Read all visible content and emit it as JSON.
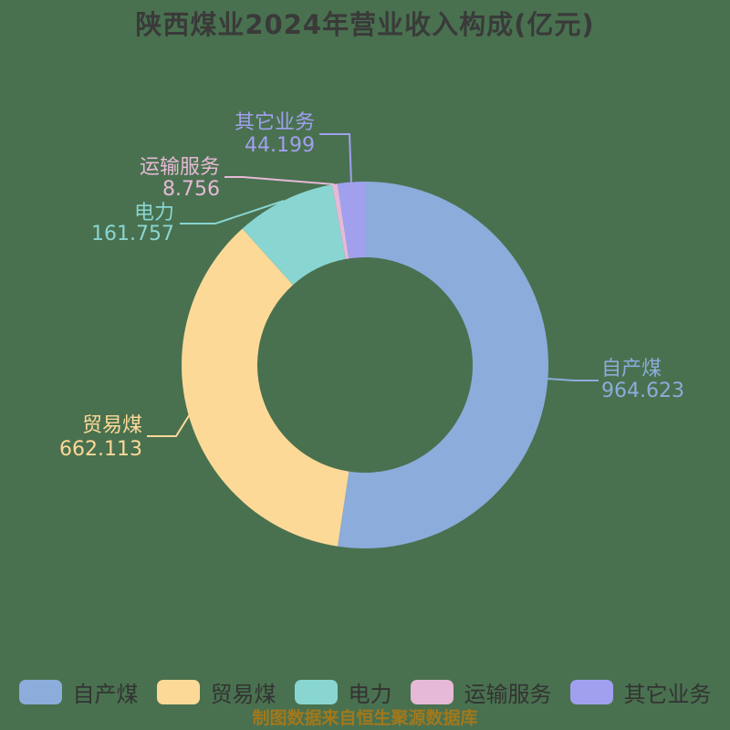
{
  "title": {
    "text": "陕西煤业2024年营业收入构成(亿元)",
    "color": "#3a3a3a"
  },
  "footer": {
    "text": "制图数据来自恒生聚源数据库",
    "color": "#a2781c"
  },
  "background_color": "#49714f",
  "chart_data": {
    "type": "pie",
    "variant": "donut",
    "title": "陕西煤业2024年营业收入构成(亿元)",
    "unit": "亿元",
    "start_angle_deg": 0,
    "direction": "clockwise",
    "legend_position": "bottom",
    "legend": [
      "自产煤",
      "贸易煤",
      "电力",
      "运输服务",
      "其它业务"
    ],
    "series": [
      {
        "key": "self-produced-coal",
        "name": "自产煤",
        "value": 964.623,
        "color": "#8cacdb"
      },
      {
        "key": "trade-coal",
        "name": "贸易煤",
        "value": 662.113,
        "color": "#fdd998"
      },
      {
        "key": "electricity",
        "name": "电力",
        "value": 161.757,
        "color": "#89d5d2"
      },
      {
        "key": "transport-service",
        "name": "运输服务",
        "value": 8.756,
        "color": "#e6b9d7"
      },
      {
        "key": "other-business",
        "name": "其它业务",
        "value": 44.199,
        "color": "#a1a0ef"
      }
    ]
  }
}
